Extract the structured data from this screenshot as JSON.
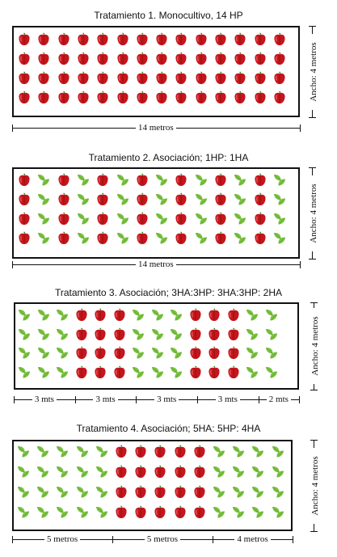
{
  "treatments": [
    {
      "title": "Tratamiento 1. Monocultivo, 14 HP",
      "pattern": [
        "HP14"
      ],
      "width_label": "Ancho: 4 metros",
      "segments": [
        {
          "label": "14 metros",
          "cols": 14
        }
      ]
    },
    {
      "title": "Tratamiento 2. Asociación; 1HP: 1HA",
      "pattern": [
        "HP1",
        "HA1",
        "HP1",
        "HA1",
        "HP1",
        "HA1",
        "HP1",
        "HA1",
        "HP1",
        "HA1",
        "HP1",
        "HA1",
        "HP1",
        "HA1"
      ],
      "width_label": "Ancho: 4 metros",
      "segments": [
        {
          "label": "14 metros",
          "cols": 14
        }
      ]
    },
    {
      "title": "Tratamiento 3. Asociación; 3HA:3HP: 3HA:3HP: 2HA",
      "pattern": [
        "HA3",
        "HP3",
        "HA3",
        "HP3",
        "HA2"
      ],
      "width_label": "Ancho: 4 metros",
      "segments": [
        {
          "label": "3 mts",
          "cols": 3
        },
        {
          "label": "3 mts",
          "cols": 3
        },
        {
          "label": "3 mts",
          "cols": 3
        },
        {
          "label": "3 mts",
          "cols": 3
        },
        {
          "label": "2 mts",
          "cols": 2
        }
      ]
    },
    {
      "title": "Tratamiento 4. Asociación; 5HA: 5HP: 4HA",
      "pattern": [
        "HA5",
        "HP5",
        "HA4"
      ],
      "width_label": "Ancho: 4 metros",
      "segments": [
        {
          "label": "5 metros",
          "cols": 5
        },
        {
          "label": "5 metros",
          "cols": 5
        },
        {
          "label": "4 metros",
          "cols": 4
        }
      ]
    }
  ],
  "rows_per_bed": 4,
  "plants": {
    "HP": "pepper-icon",
    "HA": "basil-leaf-icon"
  },
  "colors": {
    "pepper": "#c4161c",
    "pepper_stem": "#3f7d1f",
    "basil": "#7cc242",
    "basil_dark": "#5ea52e",
    "border": "#111111"
  }
}
